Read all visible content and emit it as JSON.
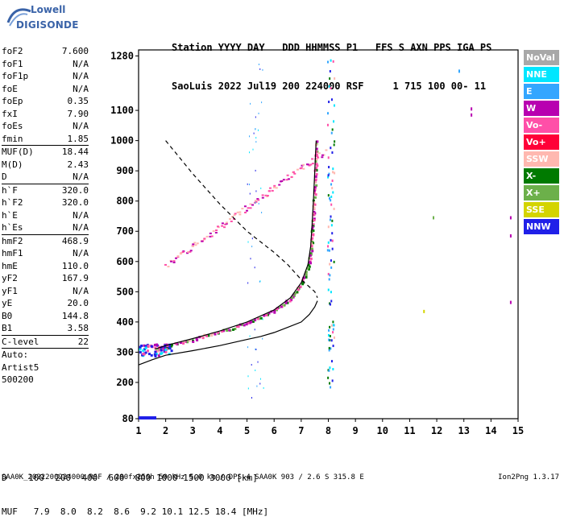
{
  "logo": {
    "line1": "Lowell",
    "line2": "DIGISONDE"
  },
  "header": {
    "line1": "Station YYYY DAY   DDD HHMMSS P1   FFS S AXN PPS IGA PS",
    "line2": "SaoLuis 2022 Jul19 200 224000 RSF     1 715 100 00- 11"
  },
  "params": [
    {
      "label": "foF2",
      "value": "7.600"
    },
    {
      "label": "foF1",
      "value": "N/A"
    },
    {
      "label": "foF1p",
      "value": "N/A"
    },
    {
      "label": "foE",
      "value": "N/A"
    },
    {
      "label": "foEp",
      "value": "0.35"
    },
    {
      "label": "fxI",
      "value": "7.90"
    },
    {
      "label": "foEs",
      "value": "N/A"
    },
    {
      "label": "fmin",
      "value": "1.85"
    }
  ],
  "params2": [
    {
      "label": "MUF(D)",
      "value": "18.44"
    },
    {
      "label": "M(D)",
      "value": "2.43"
    },
    {
      "label": "D",
      "value": "N/A"
    }
  ],
  "params3": [
    {
      "label": "h`F",
      "value": "320.0"
    },
    {
      "label": "h`F2",
      "value": "320.0"
    },
    {
      "label": "h`E",
      "value": "N/A"
    },
    {
      "label": "h`Es",
      "value": "N/A"
    }
  ],
  "params4": [
    {
      "label": "hmF2",
      "value": "468.9"
    },
    {
      "label": "hmF1",
      "value": "N/A"
    },
    {
      "label": "hmE",
      "value": "110.0"
    },
    {
      "label": "yF2",
      "value": "167.9"
    },
    {
      "label": "yF1",
      "value": "N/A"
    },
    {
      "label": "yE",
      "value": "20.0"
    },
    {
      "label": "B0",
      "value": "144.8"
    },
    {
      "label": "B1",
      "value": "3.58"
    }
  ],
  "params5": [
    {
      "label": "C-level",
      "value": "22"
    }
  ],
  "autoscale": {
    "line1": "Auto:",
    "line2": "Artist5",
    "line3": "500200"
  },
  "legend": [
    {
      "label": "NoVal",
      "color": "#a8a8a8"
    },
    {
      "label": "NNE",
      "color": "#00e6ff"
    },
    {
      "label": "E",
      "color": "#33a6ff"
    },
    {
      "label": "W",
      "color": "#b800b0"
    },
    {
      "label": "Vo-",
      "color": "#ff4fa8"
    },
    {
      "label": "Vo+",
      "color": "#ff0038"
    },
    {
      "label": "SSW",
      "color": "#ffb8b0"
    },
    {
      "label": "X-",
      "color": "#007a00"
    },
    {
      "label": "X+",
      "color": "#6cb04a"
    },
    {
      "label": "SSE",
      "color": "#d4d400"
    },
    {
      "label": "NNW",
      "color": "#2020e8"
    }
  ],
  "footer": {
    "line1": "D    100  200  400  600  800 1000 1500 3000 [km]",
    "line2": "MUF   7.9  8.0  8.2  8.6  9.2 10.1 12.5 18.4 [MHz]",
    "line3": "SAA0K_2022200224000.RSF / 280fx256h 50 kHz 5.0 km / DPS-4 SAA0K 903 / 2.6 S 315.8 E",
    "version": "Ion2Png 1.3.17"
  },
  "chart_data": {
    "type": "scatter",
    "xlim": [
      1,
      15
    ],
    "ylim": [
      80,
      1300
    ],
    "x_ticks": [
      1,
      2,
      3,
      4,
      5,
      6,
      7,
      8,
      9,
      10,
      11,
      12,
      13,
      14,
      15
    ],
    "y_ticks": [
      80,
      200,
      300,
      400,
      500,
      600,
      700,
      800,
      900,
      1000,
      1100,
      1280
    ],
    "profile_curve": [
      [
        1.0,
        258
      ],
      [
        1.5,
        275
      ],
      [
        2.0,
        290
      ],
      [
        3.0,
        305
      ],
      [
        4.0,
        322
      ],
      [
        5.0,
        342
      ],
      [
        5.5,
        352
      ],
      [
        6.0,
        365
      ],
      [
        6.5,
        382
      ],
      [
        7.0,
        400
      ],
      [
        7.3,
        425
      ],
      [
        7.5,
        450
      ],
      [
        7.6,
        470
      ]
    ],
    "f2_trace_curve": [
      [
        7.55,
        1000
      ],
      [
        7.5,
        900
      ],
      [
        7.45,
        800
      ],
      [
        7.4,
        720
      ],
      [
        7.35,
        650
      ],
      [
        7.25,
        590
      ],
      [
        7.0,
        530
      ],
      [
        6.6,
        480
      ],
      [
        6.0,
        440
      ],
      [
        5.0,
        400
      ],
      [
        4.0,
        370
      ],
      [
        3.0,
        345
      ],
      [
        2.0,
        322
      ],
      [
        1.6,
        310
      ]
    ],
    "dashed_curve": [
      [
        2.0,
        1000
      ],
      [
        3.0,
        890
      ],
      [
        4.0,
        790
      ],
      [
        5.0,
        700
      ],
      [
        6.0,
        630
      ],
      [
        6.5,
        590
      ],
      [
        7.0,
        540
      ],
      [
        7.5,
        500
      ],
      [
        7.6,
        480
      ]
    ]
  }
}
